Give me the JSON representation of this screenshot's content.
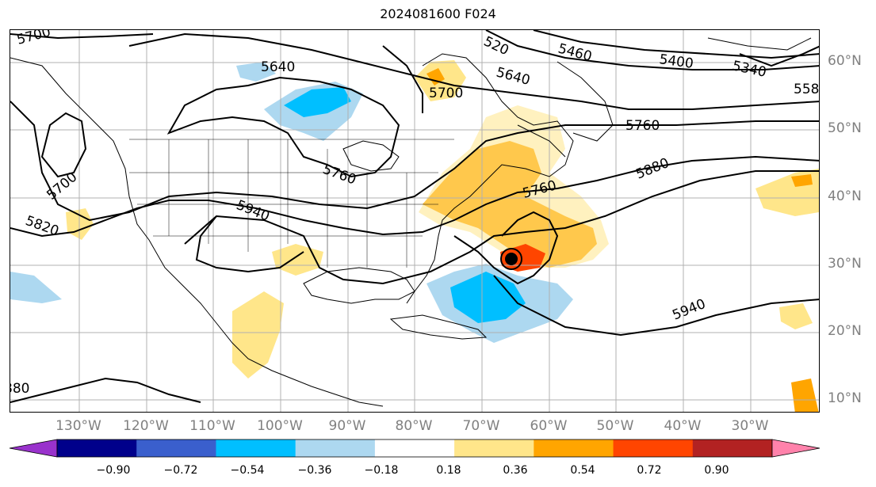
{
  "title": "2024081600 F024",
  "lat_labels": [
    "60°N",
    "50°N",
    "40°N",
    "30°N",
    "20°N",
    "10°N"
  ],
  "lon_labels": [
    "130°W",
    "120°W",
    "110°W",
    "100°W",
    "90°W",
    "80°W",
    "70°W",
    "60°W",
    "50°W",
    "40°W",
    "30°W"
  ],
  "contour_labels": [
    "5700",
    "5640",
    "5700",
    "5700",
    "5820",
    "5760",
    "5940",
    "5760",
    "5880",
    "5760",
    "5940",
    "5460",
    "5400",
    "5340",
    "558",
    "520",
    "5640",
    "880"
  ],
  "colorbar": {
    "ticks": [
      "−0.90",
      "−0.72",
      "−0.54",
      "−0.36",
      "−0.18",
      "0.18",
      "0.36",
      "0.54",
      "0.72",
      "0.90"
    ],
    "colors": [
      "#9932cc",
      "#00008b",
      "#3a5fcd",
      "#00bfff",
      "#add8f0",
      "#ffffff",
      "#ffe68a",
      "#ffa500",
      "#ff4500",
      "#b22222",
      "#ff82ab"
    ]
  }
}
